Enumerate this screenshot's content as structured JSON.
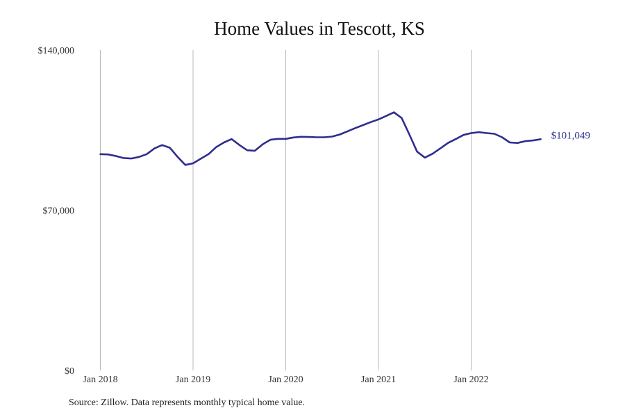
{
  "chart_data": {
    "type": "line",
    "title": "Home Values in Tescott, KS",
    "source": "Source: Zillow. Data represents monthly typical home value.",
    "xlabel": "",
    "ylabel": "",
    "ylim": [
      0,
      140000
    ],
    "y_ticks": [
      {
        "value": 0,
        "label": "$0"
      },
      {
        "value": 70000,
        "label": "$70,000"
      },
      {
        "value": 140000,
        "label": "$140,000"
      }
    ],
    "x_ticks": [
      {
        "date": "2018-01",
        "label": "Jan 2018"
      },
      {
        "date": "2019-01",
        "label": "Jan 2019"
      },
      {
        "date": "2020-01",
        "label": "Jan 2020"
      },
      {
        "date": "2021-01",
        "label": "Jan 2021"
      },
      {
        "date": "2022-01",
        "label": "Jan 2022"
      }
    ],
    "grid": "vertical",
    "series": [
      {
        "color": "#2e2d8f",
        "end_label": "$101,049",
        "x": [
          "2018-01",
          "2018-02",
          "2018-03",
          "2018-04",
          "2018-05",
          "2018-06",
          "2018-07",
          "2018-08",
          "2018-09",
          "2018-10",
          "2018-11",
          "2018-12",
          "2019-01",
          "2019-02",
          "2019-03",
          "2019-04",
          "2019-05",
          "2019-06",
          "2019-07",
          "2019-08",
          "2019-09",
          "2019-10",
          "2019-11",
          "2019-12",
          "2020-01",
          "2020-02",
          "2020-03",
          "2020-04",
          "2020-05",
          "2020-06",
          "2020-07",
          "2020-08",
          "2020-09",
          "2020-10",
          "2020-11",
          "2020-12",
          "2021-01",
          "2021-02",
          "2021-03",
          "2021-04",
          "2021-05",
          "2021-06",
          "2021-07",
          "2021-08",
          "2021-09",
          "2021-10",
          "2021-11",
          "2021-12",
          "2022-01",
          "2022-02",
          "2022-03",
          "2022-04",
          "2022-05",
          "2022-06",
          "2022-07",
          "2022-08",
          "2022-09",
          "2022-10"
        ],
        "values": [
          94500,
          94400,
          93700,
          92800,
          92600,
          93300,
          94500,
          97000,
          98500,
          97300,
          93300,
          89800,
          90500,
          92500,
          94500,
          97600,
          99600,
          101100,
          98500,
          96200,
          96000,
          98800,
          100800,
          101200,
          101200,
          101800,
          102100,
          102000,
          101900,
          101900,
          102200,
          103100,
          104500,
          105900,
          107200,
          108500,
          109700,
          111200,
          112800,
          110300,
          103100,
          95600,
          93000,
          94700,
          97000,
          99400,
          101100,
          102900,
          103700,
          104100,
          103700,
          103400,
          101900,
          99600,
          99400,
          100200,
          100500,
          101049
        ]
      }
    ]
  }
}
